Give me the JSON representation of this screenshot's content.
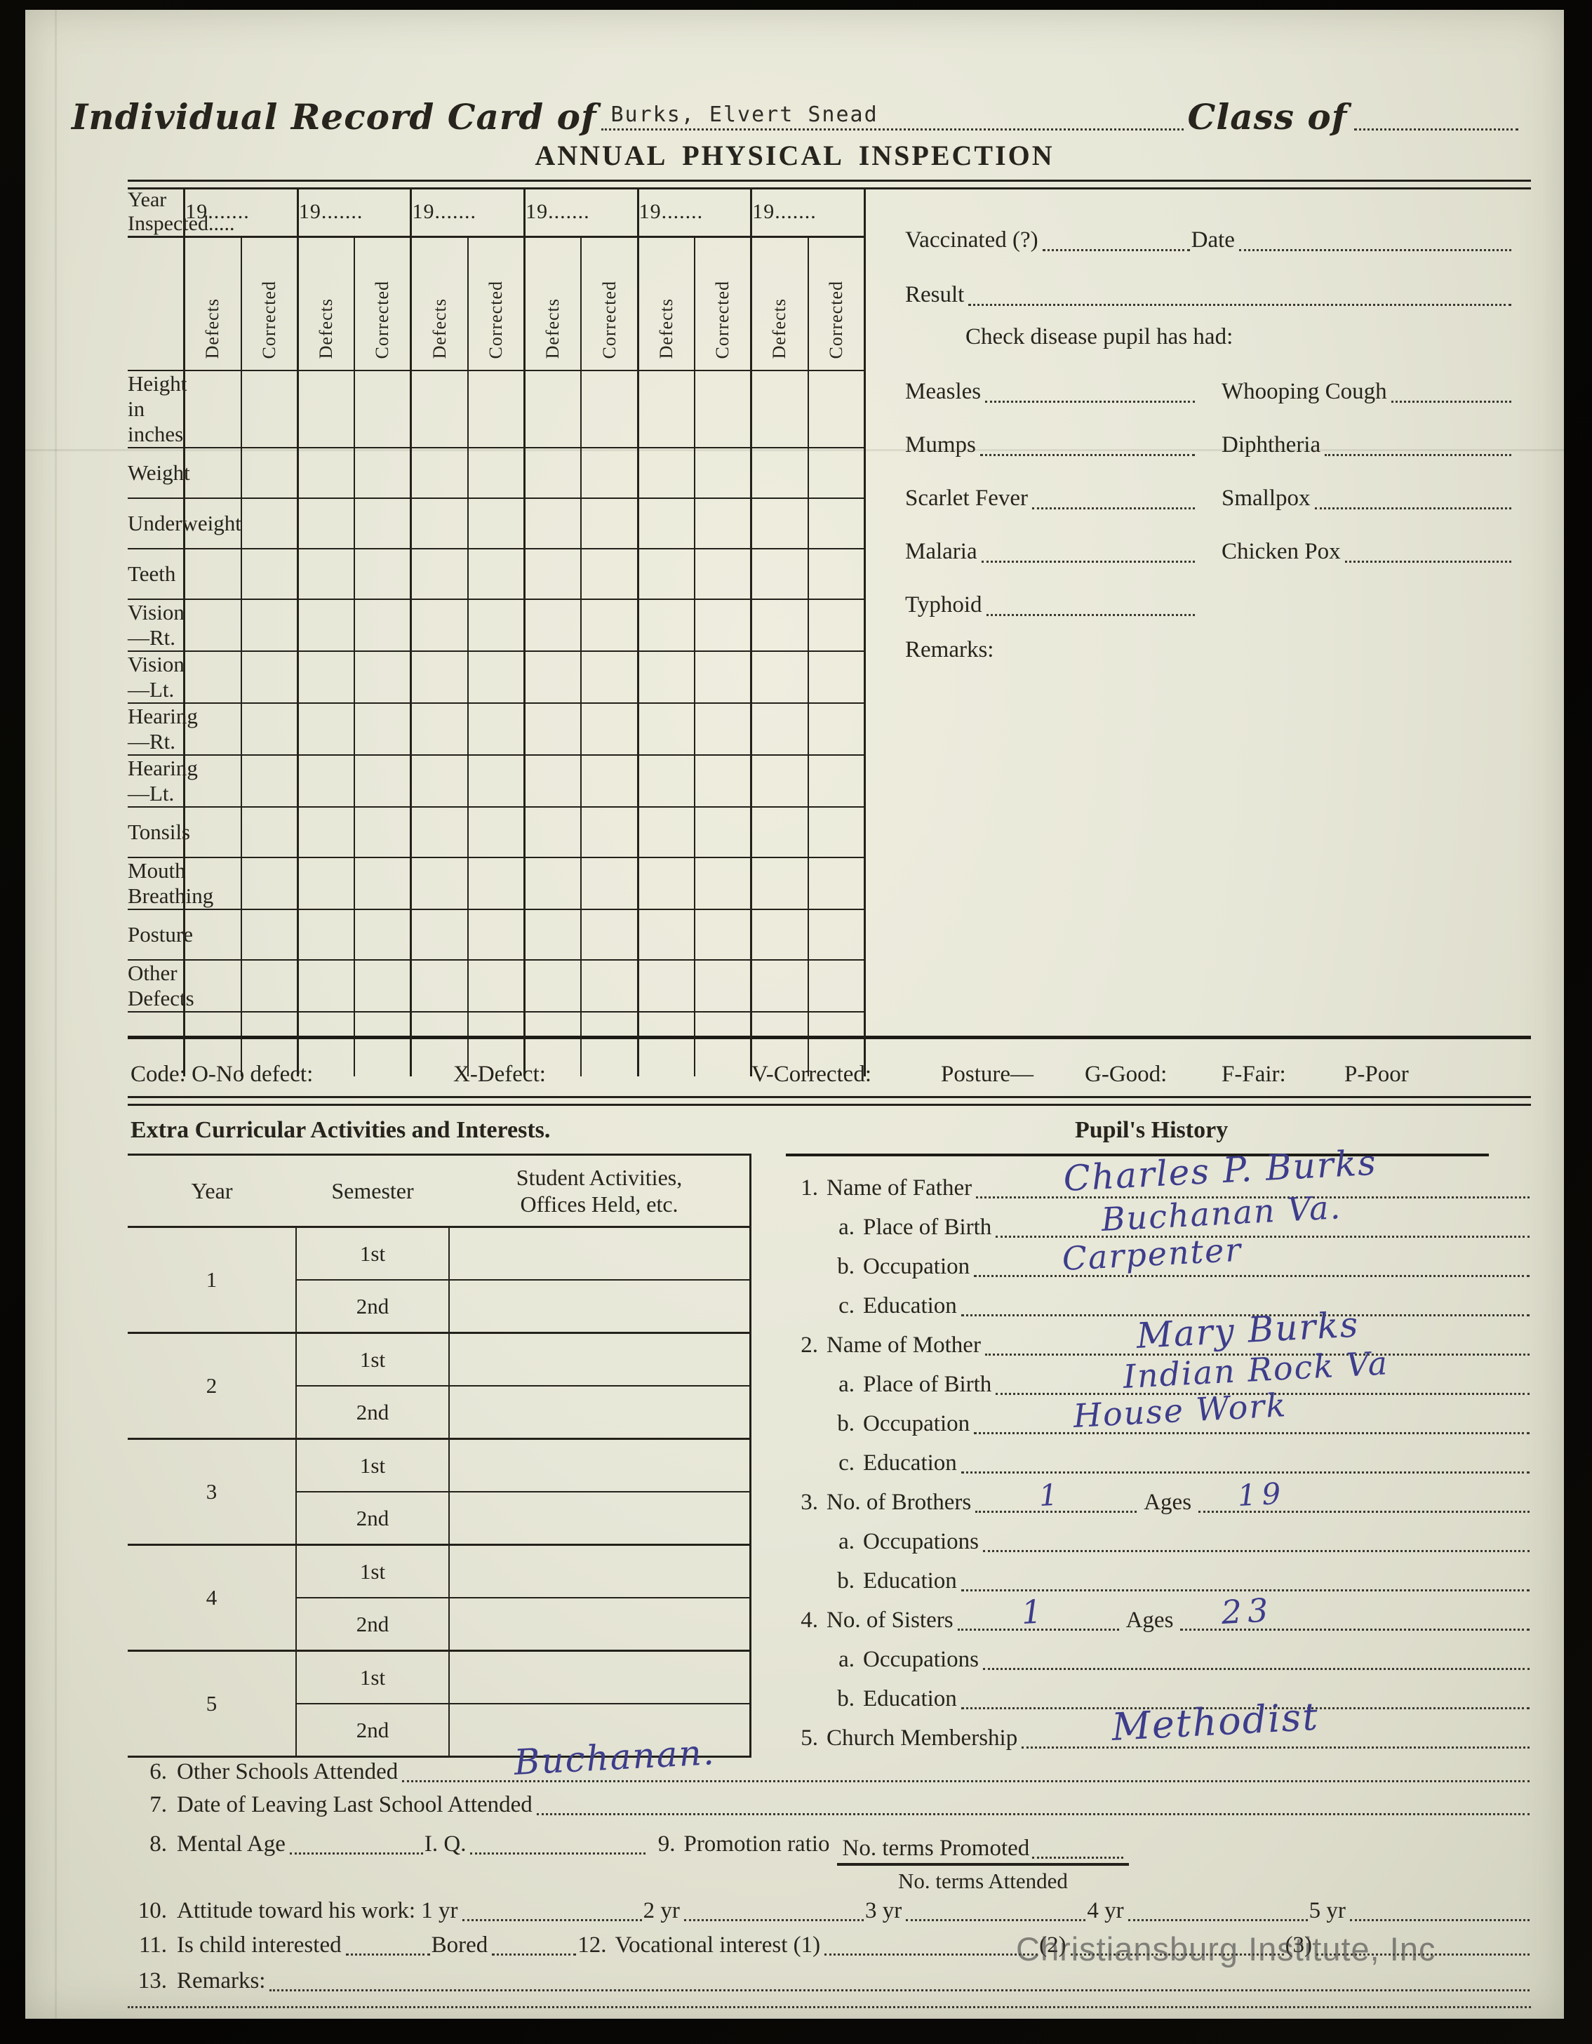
{
  "header": {
    "title_prefix": "Individual Record Card of",
    "student_name": "Burks, Elvert Snead",
    "class_of_label": "Class of",
    "section_title": "ANNUAL PHYSICAL INSPECTION"
  },
  "inspection_table": {
    "year_inspected_label": "Year Inspected.....",
    "year_label": "19.......",
    "num_year_columns": 6,
    "subcol_labels": [
      "Defects",
      "Corrected"
    ],
    "rows": [
      "Height in inches",
      "Weight",
      "Underweight",
      "Teeth",
      "Vision—Rt.",
      "Vision—Lt.",
      "Hearing—Rt.",
      "Hearing—Lt.",
      "Tonsils",
      "Mouth Breathing",
      "Posture",
      "Other Defects"
    ]
  },
  "vaccination": {
    "vaccinated_label": "Vaccinated (?)",
    "date_label": "Date",
    "result_label": "Result",
    "check_disease_label": "Check disease pupil has had:",
    "diseases_left": [
      "Measles",
      "Mumps",
      "Scarlet Fever",
      "Malaria",
      "Typhoid"
    ],
    "diseases_right": [
      "Whooping Cough",
      "Diphtheria",
      "Smallpox",
      "Chicken Pox"
    ],
    "remarks_label": "Remarks:"
  },
  "code_line": {
    "segments": [
      "Code: O-No defect:",
      "X-Defect:",
      "V-Corrected:",
      "Posture—",
      "G-Good:",
      "F-Fair:",
      "P-Poor"
    ]
  },
  "sections": {
    "activities_heading": "Extra Curricular Activities and Interests.",
    "history_heading": "Pupil's History"
  },
  "activities": {
    "col_year": "Year",
    "col_semester": "Semester",
    "col_activities_line1": "Student Activities,",
    "col_activities_line2": "Offices Held, etc.",
    "years": [
      "1",
      "2",
      "3",
      "4",
      "5"
    ],
    "semesters": [
      "1st",
      "2nd"
    ]
  },
  "history": {
    "items": [
      {
        "num": "1.",
        "label": "Name of Father",
        "value": "Charles P. Burks",
        "sub": false,
        "hand_size": 50,
        "hand_left": "16%"
      },
      {
        "num": "a.",
        "label": "Place of Birth",
        "value": "Buchanan Va.",
        "sub": true,
        "hand_size": 46,
        "hand_left": "20%"
      },
      {
        "num": "b.",
        "label": "Occupation",
        "value": "Carpenter",
        "sub": true,
        "hand_size": 46,
        "hand_left": "16%"
      },
      {
        "num": "c.",
        "label": "Education",
        "value": "",
        "sub": true
      },
      {
        "num": "2.",
        "label": "Name of Mother",
        "value": "Mary Burks",
        "sub": false,
        "hand_size": 50,
        "hand_left": "28%"
      },
      {
        "num": "a.",
        "label": "Place of Birth",
        "value": "Indian Rock Va",
        "sub": true,
        "hand_size": 46,
        "hand_left": "24%"
      },
      {
        "num": "b.",
        "label": "Occupation",
        "value": "House Work",
        "sub": true,
        "hand_size": 46,
        "hand_left": "18%"
      },
      {
        "num": "c.",
        "label": "Education",
        "value": "",
        "sub": true
      },
      {
        "num": "3.",
        "label": "No. of Brothers",
        "value": "1",
        "sub": false,
        "ages_label": "Ages",
        "ages_value": "19",
        "hand_size": 42,
        "hand_left": "40%"
      },
      {
        "num": "a.",
        "label": "Occupations",
        "value": "",
        "sub": true
      },
      {
        "num": "b.",
        "label": "Education",
        "value": "",
        "sub": true
      },
      {
        "num": "4.",
        "label": "No. of Sisters",
        "value": "1",
        "sub": false,
        "ages_label": "Ages",
        "ages_value": "23",
        "hand_size": 46,
        "hand_left": "40%"
      },
      {
        "num": "a.",
        "label": "Occupations",
        "value": "",
        "sub": true
      },
      {
        "num": "b.",
        "label": "Education",
        "value": "",
        "sub": true
      },
      {
        "num": "5.",
        "label": "Church Membership",
        "value": "Methodist",
        "sub": false,
        "hand_size": 54,
        "hand_left": "18%"
      }
    ]
  },
  "bottom": {
    "item6_num": "6.",
    "item6_label": "Other Schools Attended",
    "item6_value": "Buchanan.",
    "item7_num": "7.",
    "item7_label": "Date of Leaving Last School Attended",
    "item8_num": "8.",
    "item8_label_mental": "Mental Age",
    "item8_label_iq": "I. Q.",
    "item9_num": "9.",
    "item9_label": "Promotion ratio",
    "item9_numerator": "No. terms Promoted",
    "item9_denominator": "No. terms Attended",
    "item10_num": "10.",
    "item10_label": "Attitude toward his work: 1 yr",
    "item10_y2": "2 yr",
    "item10_y3": "3 yr",
    "item10_y4": "4 yr",
    "item10_y5": "5 yr",
    "item11_num": "11.",
    "item11_label": "Is child interested",
    "item11_bored": "Bored",
    "item12_num": "12.",
    "item12_label": "Vocational interest (1)",
    "item12_2": "(2)",
    "item12_3": "(3)",
    "item13_num": "13.",
    "item13_label": "Remarks:"
  },
  "watermark": {
    "text": "Christiansburg Institute, Inc"
  },
  "colors": {
    "paper": "#e7e7d8",
    "ink": "#26241d",
    "hand_ink": "#3d3d8c",
    "watermark": "#464646"
  }
}
